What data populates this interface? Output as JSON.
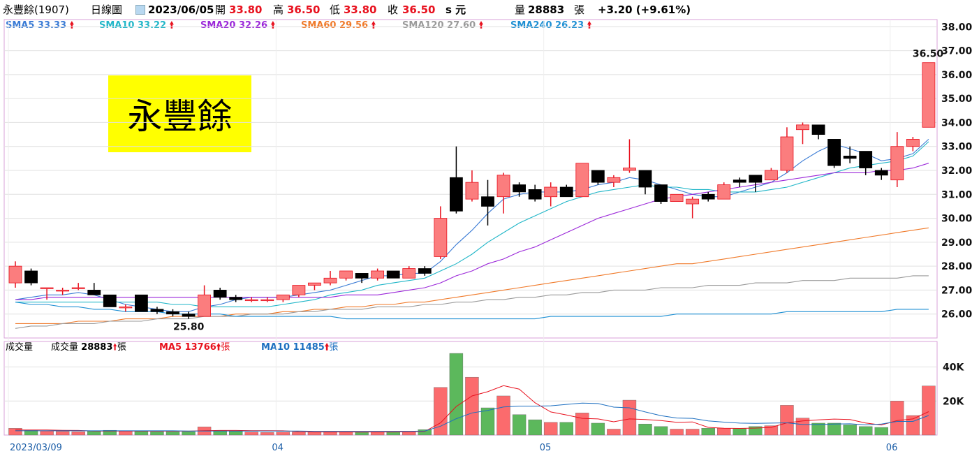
{
  "header": {
    "stock_name": "永豐餘(1907)",
    "period": "日線圖",
    "date": "2023/06/05",
    "open_label": "開",
    "open": "33.80",
    "high_label": "高",
    "high": "36.50",
    "low_label": "低",
    "low": "33.80",
    "close_label": "收",
    "close": "36.50",
    "s_unit": "s 元",
    "volume_label": "量",
    "volume": "28883",
    "volume_unit": "張",
    "change": "+3.20 (+9.61%)"
  },
  "sma_legend": [
    {
      "label": "SMA5 33.33",
      "color": "#3a7bd5"
    },
    {
      "label": "SMA10 33.22",
      "color": "#20b6c8"
    },
    {
      "label": "SMA20 32.26",
      "color": "#9b27d9"
    },
    {
      "label": "SMA60 29.56",
      "color": "#f07a2a"
    },
    {
      "label": "SMA120 27.60",
      "color": "#9a9a9a"
    },
    {
      "label": "SMA240 26.23",
      "color": "#1d8fd3"
    }
  ],
  "watermark": "永豐餘",
  "annotations": {
    "max_label": "36.50",
    "min_label": "25.80"
  },
  "volume_legend": {
    "title": "成交量",
    "vol_label": "成交量",
    "vol_value": "28883",
    "vol_unit": "張",
    "ma5_label": "MA5 13766",
    "ma5_unit": "張",
    "ma10_label": "MA10 11485",
    "ma10_unit": "張"
  },
  "colors": {
    "up": "#fb7d7e",
    "up_border": "#e8111e",
    "down": "#000000",
    "vol_up": "#fb6b6d",
    "vol_down": "#5cb85c",
    "grid": "#e0e0e0",
    "frame": "#d9a0d9"
  },
  "chart_data": {
    "type": "candlestick",
    "title": "永豐餘(1907) 日線圖",
    "y_ticks": [
      26,
      27,
      28,
      29,
      30,
      31,
      32,
      33,
      34,
      35,
      36,
      37,
      38
    ],
    "y_tick_labels": [
      "26.00",
      "27.00",
      "28.00",
      "29.00",
      "30.00",
      "31.00",
      "32.00",
      "33.00",
      "34.00",
      "35.00",
      "36.00",
      "37.00",
      "38.00"
    ],
    "ylim": [
      25.0,
      38.3
    ],
    "x_tick_labels": [
      {
        "index": 0,
        "label": "2023/03/09"
      },
      {
        "index": 17,
        "label": "04"
      },
      {
        "index": 34,
        "label": "05"
      },
      {
        "index": 56,
        "label": "06"
      }
    ],
    "candles": [
      {
        "o": 27.3,
        "h": 28.2,
        "l": 27.1,
        "c": 28.0
      },
      {
        "o": 27.8,
        "h": 27.9,
        "l": 27.2,
        "c": 27.3
      },
      {
        "o": 27.1,
        "h": 27.1,
        "l": 26.6,
        "c": 27.1
      },
      {
        "o": 27.0,
        "h": 27.1,
        "l": 26.8,
        "c": 27.0
      },
      {
        "o": 27.1,
        "h": 27.3,
        "l": 27.0,
        "c": 27.1
      },
      {
        "o": 27.0,
        "h": 27.3,
        "l": 26.8,
        "c": 26.8
      },
      {
        "o": 26.8,
        "h": 26.8,
        "l": 26.3,
        "c": 26.3
      },
      {
        "o": 26.3,
        "h": 26.4,
        "l": 26.1,
        "c": 26.3
      },
      {
        "o": 26.8,
        "h": 26.8,
        "l": 26.1,
        "c": 26.1
      },
      {
        "o": 26.2,
        "h": 26.3,
        "l": 26.0,
        "c": 26.1
      },
      {
        "o": 26.1,
        "h": 26.2,
        "l": 25.9,
        "c": 26.0
      },
      {
        "o": 26.0,
        "h": 26.1,
        "l": 25.8,
        "c": 25.9
      },
      {
        "o": 25.9,
        "h": 27.2,
        "l": 25.9,
        "c": 26.8
      },
      {
        "o": 27.0,
        "h": 27.1,
        "l": 26.6,
        "c": 26.7
      },
      {
        "o": 26.7,
        "h": 26.8,
        "l": 26.5,
        "c": 26.6
      },
      {
        "o": 26.6,
        "h": 26.7,
        "l": 26.5,
        "c": 26.6
      },
      {
        "o": 26.6,
        "h": 26.7,
        "l": 26.5,
        "c": 26.6
      },
      {
        "o": 26.6,
        "h": 26.8,
        "l": 26.5,
        "c": 26.8
      },
      {
        "o": 26.8,
        "h": 27.2,
        "l": 26.7,
        "c": 27.2
      },
      {
        "o": 27.2,
        "h": 27.3,
        "l": 27.0,
        "c": 27.3
      },
      {
        "o": 27.3,
        "h": 27.8,
        "l": 27.2,
        "c": 27.5
      },
      {
        "o": 27.5,
        "h": 27.8,
        "l": 27.4,
        "c": 27.8
      },
      {
        "o": 27.7,
        "h": 27.7,
        "l": 27.3,
        "c": 27.5
      },
      {
        "o": 27.5,
        "h": 27.9,
        "l": 27.4,
        "c": 27.8
      },
      {
        "o": 27.8,
        "h": 27.8,
        "l": 27.5,
        "c": 27.5
      },
      {
        "o": 27.5,
        "h": 28.0,
        "l": 27.5,
        "c": 27.9
      },
      {
        "o": 27.9,
        "h": 28.0,
        "l": 27.6,
        "c": 27.7
      },
      {
        "o": 28.4,
        "h": 30.5,
        "l": 28.3,
        "c": 30.0
      },
      {
        "o": 31.7,
        "h": 33.0,
        "l": 30.2,
        "c": 30.3
      },
      {
        "o": 30.8,
        "h": 32.0,
        "l": 30.7,
        "c": 31.5
      },
      {
        "o": 30.9,
        "h": 31.6,
        "l": 29.7,
        "c": 30.5
      },
      {
        "o": 30.9,
        "h": 31.9,
        "l": 30.2,
        "c": 31.8
      },
      {
        "o": 31.4,
        "h": 31.5,
        "l": 30.9,
        "c": 31.1
      },
      {
        "o": 31.2,
        "h": 31.4,
        "l": 30.7,
        "c": 30.8
      },
      {
        "o": 30.9,
        "h": 31.5,
        "l": 30.5,
        "c": 31.3
      },
      {
        "o": 31.3,
        "h": 31.4,
        "l": 30.9,
        "c": 30.9
      },
      {
        "o": 30.9,
        "h": 32.3,
        "l": 30.9,
        "c": 32.3
      },
      {
        "o": 32.0,
        "h": 32.0,
        "l": 31.4,
        "c": 31.5
      },
      {
        "o": 31.5,
        "h": 31.8,
        "l": 31.3,
        "c": 31.7
      },
      {
        "o": 32.0,
        "h": 33.3,
        "l": 31.9,
        "c": 32.1
      },
      {
        "o": 32.0,
        "h": 32.0,
        "l": 31.0,
        "c": 31.3
      },
      {
        "o": 31.4,
        "h": 31.4,
        "l": 30.6,
        "c": 30.7
      },
      {
        "o": 30.7,
        "h": 31.0,
        "l": 30.7,
        "c": 31.0
      },
      {
        "o": 30.6,
        "h": 30.9,
        "l": 30.0,
        "c": 30.8
      },
      {
        "o": 31.0,
        "h": 31.1,
        "l": 30.7,
        "c": 30.8
      },
      {
        "o": 30.8,
        "h": 31.5,
        "l": 30.8,
        "c": 31.4
      },
      {
        "o": 31.6,
        "h": 31.7,
        "l": 31.3,
        "c": 31.5
      },
      {
        "o": 31.8,
        "h": 31.8,
        "l": 31.1,
        "c": 31.5
      },
      {
        "o": 31.6,
        "h": 32.1,
        "l": 31.6,
        "c": 32.0
      },
      {
        "o": 32.0,
        "h": 33.8,
        "l": 31.9,
        "c": 33.4
      },
      {
        "o": 33.7,
        "h": 34.0,
        "l": 33.1,
        "c": 33.9
      },
      {
        "o": 33.9,
        "h": 33.9,
        "l": 33.3,
        "c": 33.5
      },
      {
        "o": 33.3,
        "h": 33.3,
        "l": 32.1,
        "c": 32.2
      },
      {
        "o": 32.6,
        "h": 33.0,
        "l": 32.3,
        "c": 32.5
      },
      {
        "o": 32.8,
        "h": 32.8,
        "l": 31.8,
        "c": 32.1
      },
      {
        "o": 32.0,
        "h": 32.1,
        "l": 31.6,
        "c": 31.8
      },
      {
        "o": 31.6,
        "h": 33.6,
        "l": 31.3,
        "c": 33.0
      },
      {
        "o": 33.0,
        "h": 33.4,
        "l": 32.8,
        "c": 33.3
      },
      {
        "o": 33.8,
        "h": 36.5,
        "l": 33.8,
        "c": 36.5
      }
    ],
    "series": [
      {
        "name": "SMA5",
        "values": [
          26.6,
          26.7,
          26.8,
          26.8,
          26.9,
          26.8,
          26.6,
          26.4,
          26.3,
          26.2,
          26.1,
          26.1,
          26.3,
          26.4,
          26.6,
          26.7,
          26.7,
          26.7,
          26.8,
          26.9,
          27.0,
          27.2,
          27.4,
          27.6,
          27.6,
          27.7,
          27.7,
          28.2,
          28.9,
          29.5,
          30.2,
          30.8,
          31.0,
          31.1,
          31.1,
          31.1,
          31.2,
          31.4,
          31.5,
          31.7,
          31.6,
          31.4,
          31.2,
          31.0,
          30.9,
          30.9,
          31.1,
          31.3,
          31.5,
          31.9,
          32.4,
          32.8,
          33.1,
          32.9,
          32.7,
          32.4,
          32.5,
          32.7,
          33.3
        ]
      },
      {
        "name": "SMA10",
        "values": [
          26.5,
          26.5,
          26.5,
          26.5,
          26.5,
          26.5,
          26.5,
          26.5,
          26.5,
          26.5,
          26.4,
          26.4,
          26.3,
          26.3,
          26.3,
          26.3,
          26.3,
          26.4,
          26.5,
          26.6,
          26.8,
          26.9,
          27.0,
          27.2,
          27.3,
          27.4,
          27.5,
          27.8,
          28.1,
          28.5,
          29.0,
          29.4,
          29.8,
          30.1,
          30.4,
          30.7,
          30.9,
          31.1,
          31.2,
          31.3,
          31.4,
          31.3,
          31.3,
          31.2,
          31.2,
          31.1,
          31.1,
          31.1,
          31.2,
          31.3,
          31.5,
          31.7,
          31.9,
          32.1,
          32.2,
          32.3,
          32.4,
          32.6,
          33.2
        ]
      },
      {
        "name": "SMA20",
        "values": [
          26.6,
          26.6,
          26.7,
          26.7,
          26.7,
          26.7,
          26.7,
          26.7,
          26.7,
          26.7,
          26.7,
          26.7,
          26.7,
          26.7,
          26.7,
          26.7,
          26.7,
          26.7,
          26.7,
          26.7,
          26.7,
          26.8,
          26.8,
          26.8,
          26.9,
          27.0,
          27.1,
          27.3,
          27.6,
          27.8,
          28.1,
          28.3,
          28.6,
          28.8,
          29.1,
          29.4,
          29.7,
          30.0,
          30.2,
          30.4,
          30.6,
          30.8,
          30.9,
          31.0,
          31.1,
          31.2,
          31.3,
          31.4,
          31.5,
          31.6,
          31.7,
          31.8,
          31.9,
          31.9,
          31.9,
          32.0,
          32.0,
          32.1,
          32.3
        ]
      },
      {
        "name": "SMA60",
        "values": [
          25.6,
          25.6,
          25.6,
          25.6,
          25.7,
          25.7,
          25.7,
          25.8,
          25.8,
          25.8,
          25.9,
          25.9,
          25.9,
          25.9,
          26.0,
          26.0,
          26.0,
          26.1,
          26.1,
          26.2,
          26.2,
          26.3,
          26.3,
          26.4,
          26.4,
          26.5,
          26.5,
          26.6,
          26.7,
          26.8,
          26.9,
          27.0,
          27.1,
          27.2,
          27.3,
          27.4,
          27.5,
          27.6,
          27.7,
          27.8,
          27.9,
          28.0,
          28.1,
          28.1,
          28.2,
          28.3,
          28.4,
          28.5,
          28.6,
          28.7,
          28.8,
          28.9,
          29.0,
          29.1,
          29.2,
          29.3,
          29.4,
          29.5,
          29.6
        ]
      },
      {
        "name": "SMA120",
        "values": [
          25.4,
          25.5,
          25.5,
          25.6,
          25.6,
          25.6,
          25.7,
          25.7,
          25.7,
          25.8,
          25.8,
          25.8,
          25.9,
          25.9,
          25.9,
          26.0,
          26.0,
          26.0,
          26.1,
          26.1,
          26.2,
          26.2,
          26.2,
          26.3,
          26.3,
          26.3,
          26.4,
          26.4,
          26.5,
          26.5,
          26.6,
          26.6,
          26.7,
          26.7,
          26.8,
          26.8,
          26.9,
          26.9,
          27.0,
          27.0,
          27.0,
          27.1,
          27.1,
          27.1,
          27.2,
          27.2,
          27.2,
          27.3,
          27.3,
          27.3,
          27.4,
          27.4,
          27.4,
          27.5,
          27.5,
          27.5,
          27.5,
          27.6,
          27.6
        ]
      },
      {
        "name": "SMA240",
        "values": [
          26.5,
          26.4,
          26.4,
          26.3,
          26.3,
          26.2,
          26.2,
          26.1,
          26.1,
          26.1,
          26.0,
          26.0,
          26.0,
          26.0,
          25.9,
          25.9,
          25.9,
          25.9,
          25.9,
          25.9,
          25.9,
          25.8,
          25.8,
          25.8,
          25.8,
          25.8,
          25.8,
          25.8,
          25.8,
          25.8,
          25.8,
          25.8,
          25.8,
          25.8,
          25.9,
          25.9,
          25.9,
          25.9,
          25.9,
          25.9,
          25.9,
          25.9,
          26.0,
          26.0,
          26.0,
          26.0,
          26.0,
          26.0,
          26.0,
          26.1,
          26.1,
          26.1,
          26.1,
          26.1,
          26.1,
          26.1,
          26.2,
          26.2,
          26.2
        ]
      }
    ],
    "volume": {
      "ylim": [
        0,
        55000
      ],
      "y_ticks": [
        20000,
        40000
      ],
      "y_tick_labels": [
        "20K",
        "40K"
      ],
      "values": [
        4000,
        2800,
        2500,
        2200,
        2000,
        2200,
        2800,
        2500,
        2200,
        2000,
        2000,
        2000,
        4800,
        2500,
        2200,
        1800,
        1600,
        1800,
        1800,
        1800,
        2000,
        1800,
        1600,
        1800,
        2000,
        2200,
        3200,
        28000,
        48000,
        34000,
        16000,
        23000,
        12000,
        9000,
        7500,
        7500,
        13000,
        7000,
        3500,
        20500,
        6500,
        5000,
        3500,
        3500,
        4000,
        4000,
        4000,
        5000,
        5500,
        17500,
        10000,
        7000,
        7000,
        6000,
        5000,
        4500,
        20000,
        11500,
        28883
      ],
      "ma5": [
        3000,
        3000,
        3000,
        2800,
        2700,
        2400,
        2300,
        2400,
        2300,
        2300,
        2300,
        2300,
        2600,
        2700,
        2700,
        2600,
        2600,
        2500,
        2000,
        1800,
        1800,
        1800,
        1800,
        1800,
        1800,
        1900,
        2100,
        7200,
        16800,
        23000,
        25500,
        29000,
        27000,
        19000,
        13600,
        11800,
        9800,
        9500,
        7800,
        9500,
        9100,
        8500,
        7500,
        7700,
        4500,
        4000,
        3900,
        4100,
        4500,
        7200,
        8300,
        8900,
        9400,
        9100,
        7100,
        5900,
        8500,
        9500,
        13766
      ],
      "ma10": [
        2500,
        2500,
        2500,
        2500,
        2500,
        2500,
        2500,
        2500,
        2500,
        2500,
        2500,
        2400,
        2400,
        2400,
        2400,
        2400,
        2400,
        2400,
        2400,
        2200,
        2200,
        2200,
        2200,
        2200,
        2200,
        2200,
        2400,
        5200,
        9600,
        13000,
        14500,
        16500,
        17000,
        17000,
        17200,
        18000,
        18800,
        18500,
        16400,
        16000,
        13600,
        11400,
        10000,
        9800,
        8300,
        7600,
        7000,
        6900,
        7000,
        7200,
        6200,
        6200,
        6500,
        6600,
        6000,
        6500,
        8000,
        8000,
        11485
      ]
    }
  }
}
